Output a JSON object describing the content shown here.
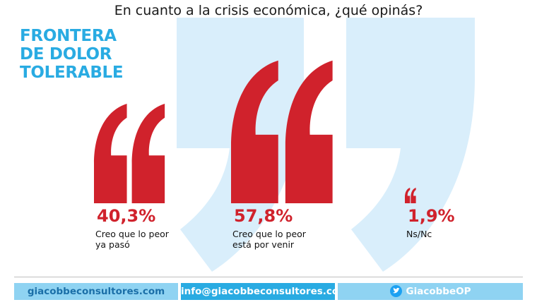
{
  "title": "En cuanto a la crisis económica, ¿qué opinás?",
  "brand": {
    "lines": [
      "FRONTERA",
      "DE DOLOR",
      "TOLERABLE"
    ]
  },
  "colors": {
    "quote": "#d0222c",
    "brand": "#29abe2",
    "bg_quote": "#d9eefb"
  },
  "chart_data": {
    "type": "bar",
    "categories": [
      "Creo que lo peor ya pasó",
      "Creo que lo peor está por venir",
      "Ns/Nc"
    ],
    "values": [
      40.3,
      57.8,
      1.9
    ],
    "labels": [
      "40,3%",
      "57,8%",
      "1,9%"
    ],
    "category_lines": [
      [
        "Creo que lo peor",
        "ya pasó"
      ],
      [
        "Creo que lo peor",
        "está por venir"
      ],
      [
        "Ns/Nc"
      ]
    ],
    "unit": "%"
  },
  "footer": {
    "website": "giacobbeconsultores.com",
    "email": "info@giacobbeconsultores.com",
    "twitter": "GiacobbeOP",
    "twitter_icon": "twitter-bird-icon"
  }
}
